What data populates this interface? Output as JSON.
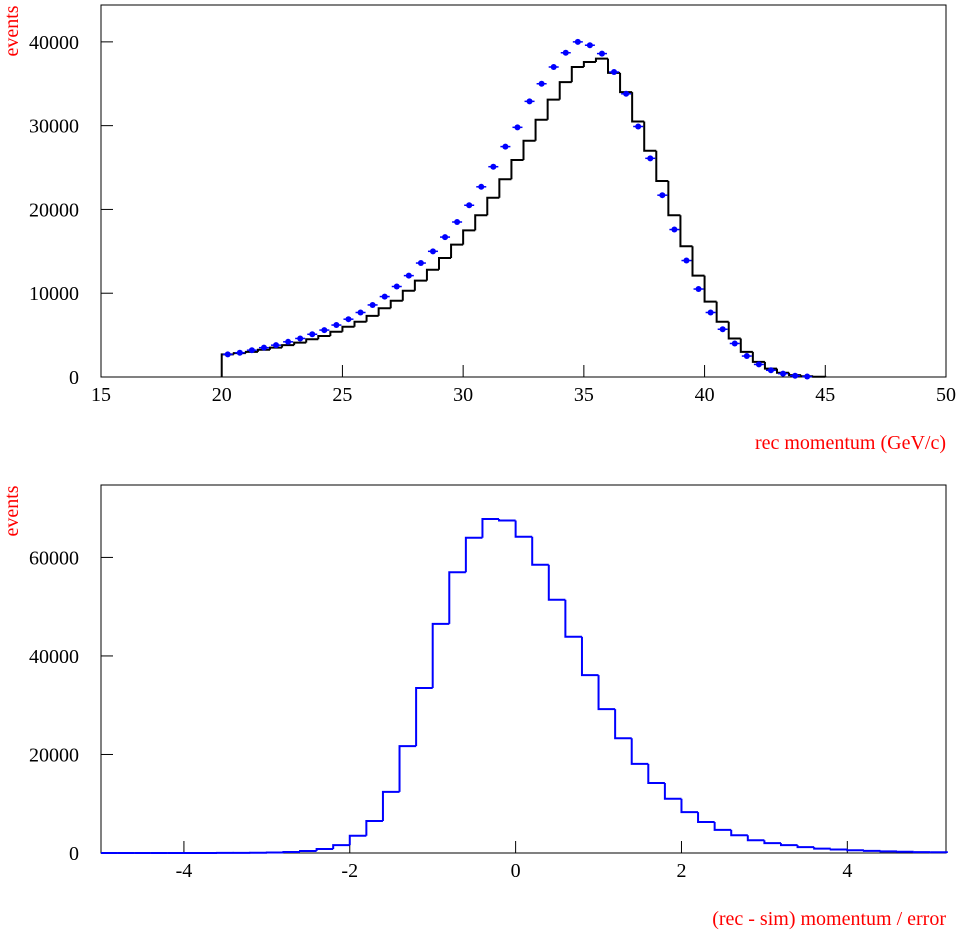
{
  "chart_data": [
    {
      "type": "histogram",
      "y_label": "events",
      "x_label": "rec momentum (GeV/c)",
      "xlim": [
        15,
        50
      ],
      "ylim": [
        0,
        44400
      ],
      "xticks": [
        15,
        20,
        25,
        30,
        35,
        40,
        45,
        50
      ],
      "yticks": [
        0,
        10000,
        20000,
        30000,
        40000
      ],
      "color": "#000000",
      "bins": [
        20,
        20.5,
        21,
        21.5,
        22,
        22.5,
        23,
        23.5,
        24,
        24.5,
        25,
        25.5,
        26,
        26.5,
        27,
        27.5,
        28,
        28.5,
        29,
        29.5,
        30,
        30.5,
        31,
        31.5,
        32,
        32.5,
        33,
        33.5,
        34,
        34.5,
        35,
        35.5,
        36,
        36.5,
        37,
        37.5,
        38,
        38.5,
        39,
        39.5,
        40,
        40.5,
        41,
        41.5,
        42,
        42.5,
        43,
        43.5,
        44,
        44.5,
        45
      ],
      "counts": [
        2700,
        2850,
        3000,
        3250,
        3500,
        3800,
        4100,
        4500,
        4900,
        5400,
        6000,
        6600,
        7300,
        8200,
        9100,
        10300,
        11500,
        12800,
        14200,
        15800,
        17500,
        19300,
        21400,
        23600,
        25900,
        28200,
        30700,
        33100,
        35200,
        37000,
        37600,
        38000,
        36300,
        34000,
        30500,
        27000,
        23400,
        19300,
        15600,
        12100,
        9000,
        6600,
        4600,
        3000,
        1800,
        1000,
        500,
        220,
        90,
        30
      ],
      "points": {
        "color": "#0000ff",
        "x": [
          20.25,
          20.75,
          21.25,
          21.75,
          22.25,
          22.75,
          23.25,
          23.75,
          24.25,
          24.75,
          25.25,
          25.75,
          26.25,
          26.75,
          27.25,
          27.75,
          28.25,
          28.75,
          29.25,
          29.75,
          30.25,
          30.75,
          31.25,
          31.75,
          32.25,
          32.75,
          33.25,
          33.75,
          34.25,
          34.75,
          35.25,
          35.75,
          36.25,
          36.75,
          37.25,
          37.75,
          38.25,
          38.75,
          39.25,
          39.75,
          40.25,
          40.75,
          41.25,
          41.75,
          42.25,
          42.75,
          43.25,
          43.75,
          44.25
        ],
        "y": [
          2700,
          2900,
          3200,
          3500,
          3800,
          4200,
          4600,
          5100,
          5600,
          6200,
          6900,
          7700,
          8600,
          9600,
          10800,
          12100,
          13600,
          15000,
          16700,
          18500,
          20500,
          22700,
          25100,
          27500,
          29800,
          32900,
          35000,
          37000,
          38700,
          40000,
          39600,
          38600,
          36400,
          33800,
          29900,
          26100,
          21700,
          17600,
          13900,
          10500,
          7700,
          5700,
          4000,
          2500,
          1500,
          800,
          400,
          150,
          60
        ]
      }
    },
    {
      "type": "histogram",
      "y_label": "events",
      "x_label": "(rec - sim) momentum / error",
      "xlim": [
        -5,
        5.19
      ],
      "ylim": [
        0,
        74700
      ],
      "xticks": [
        -4,
        -2,
        0,
        2,
        4
      ],
      "yticks": [
        0,
        20000,
        40000,
        60000
      ],
      "color": "#0000ff",
      "bins": [
        -5,
        -4.8,
        -4.6,
        -4.4,
        -4.2,
        -4,
        -3.8,
        -3.6,
        -3.4,
        -3.2,
        -3,
        -2.8,
        -2.6,
        -2.4,
        -2.2,
        -2,
        -1.8,
        -1.6,
        -1.4,
        -1.2,
        -1,
        -0.8,
        -0.6,
        -0.4,
        -0.2,
        0,
        0.2,
        0.4,
        0.6,
        0.8,
        1,
        1.2,
        1.4,
        1.6,
        1.8,
        2,
        2.2,
        2.4,
        2.6,
        2.8,
        3,
        3.2,
        3.4,
        3.6,
        3.8,
        4,
        4.2,
        4.4,
        4.6,
        4.8,
        5,
        5.2
      ],
      "counts": [
        0,
        0,
        0,
        0,
        0,
        5,
        10,
        15,
        30,
        60,
        100,
        200,
        400,
        800,
        1600,
        3500,
        6500,
        12400,
        21700,
        33500,
        46500,
        57000,
        64000,
        67800,
        67500,
        64200,
        58500,
        51400,
        43900,
        36100,
        29200,
        23300,
        18100,
        14200,
        11000,
        8300,
        6300,
        4700,
        3600,
        2600,
        2000,
        1600,
        1200,
        900,
        700,
        550,
        420,
        320,
        250,
        190,
        140
      ]
    }
  ]
}
